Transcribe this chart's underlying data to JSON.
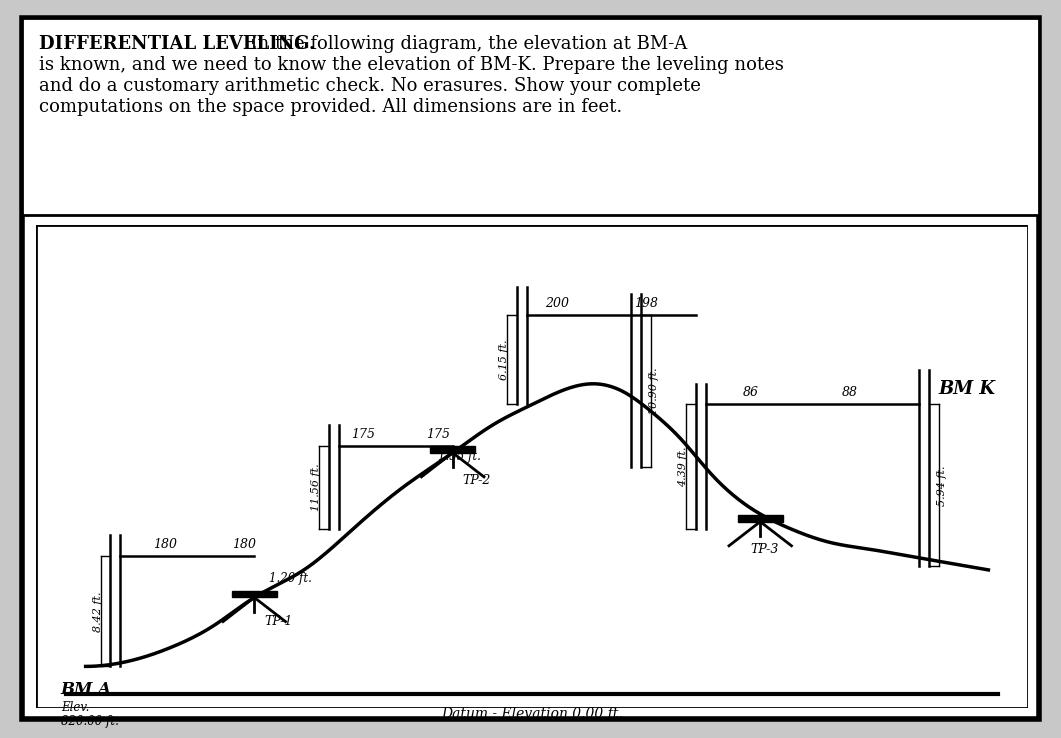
{
  "title_bold": "DIFFERENTIAL LEVELING.",
  "title_normal": "  In the following diagram, the elevation at BM-A\nis known, and we need to know the elevation of BM-K. Prepare the leveling notes\nand do a customary arithmetic check. No erasures. Show your complete\ncomputations on the space provided. All dimensions are in feet.",
  "bg_color": "#ffffff",
  "border_color": "#000000",
  "datum_label": "Datum - Elevation 0.00 ft.",
  "bma_label": "BM A",
  "bma_elev_line1": "Elev.",
  "bma_elev_line2": "820.00 ft.",
  "bmk_label": "BM K",
  "rod_bma_left": "180",
  "rod_bma_right": "180",
  "rod_bma_measurement": "8.42 ft.",
  "rod_tp1_left": "175",
  "rod_tp1_right": "175",
  "rod_tp1_measurement": "11.56 ft.",
  "rod_tp1_fs": "1.20 ft.",
  "rod_tp2_left": "200",
  "rod_tp2_right": "198",
  "rod_tp2_measurement": "6.15 ft.",
  "rod_tp2_fs": "1.35 ft.",
  "rod_tp3_left": "86",
  "rod_tp3_right": "88",
  "rod_tp3_measurement": "4.39 ft.",
  "rod_tp3_fs": "10.90 ft.",
  "rod_bmk_measurement": "5.94 ft.",
  "tp1_label": "TP-1",
  "tp2_label": "TP-2",
  "tp3_label": "TP-3"
}
